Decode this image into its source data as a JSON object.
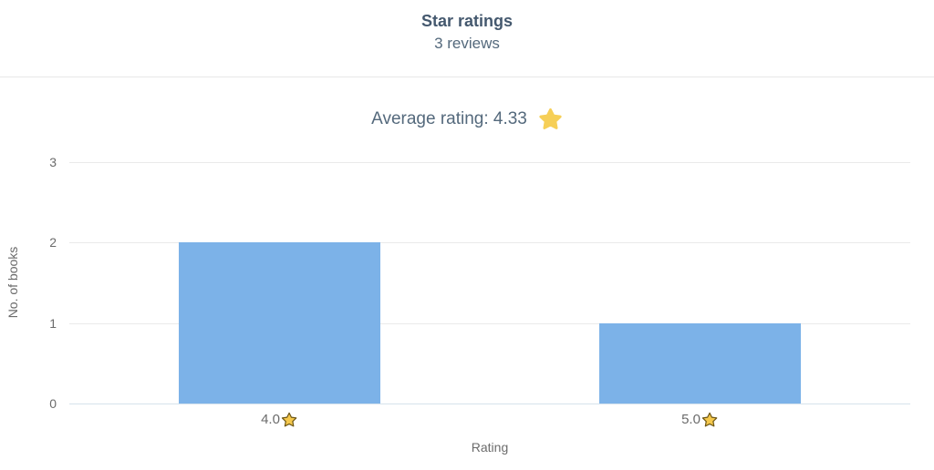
{
  "header": {
    "title": "Star ratings",
    "subtitle": "3 reviews"
  },
  "summary": {
    "average_label": "Average rating: 4.33",
    "average_value": 4.33,
    "star_icon": "star-solid-icon"
  },
  "colors": {
    "bar": "#7CB2E8",
    "title_text": "#44586E",
    "subtitle_text": "#54697C",
    "axis_text": "#6B6B6B",
    "gridline": "#EAEAEA",
    "zero_line": "#D6E2EC",
    "divider": "#E7E7E7",
    "solid_star": "#F6CF57",
    "outlined_star_fill": "#F5C84C",
    "outlined_star_stroke": "#6E5715"
  },
  "chart_data": {
    "type": "bar",
    "categories": [
      "4.0",
      "5.0"
    ],
    "values": [
      2,
      1
    ],
    "title": "Star ratings",
    "subtitle": "3 reviews",
    "xlabel": "Rating",
    "ylabel": "No. of books",
    "ylim": [
      0,
      3
    ],
    "yticks": [
      0,
      1,
      2,
      3
    ],
    "category_icon": "star-outline-icon",
    "grid": true,
    "legend_position": "none",
    "bar_color": "#7CB2E8"
  }
}
